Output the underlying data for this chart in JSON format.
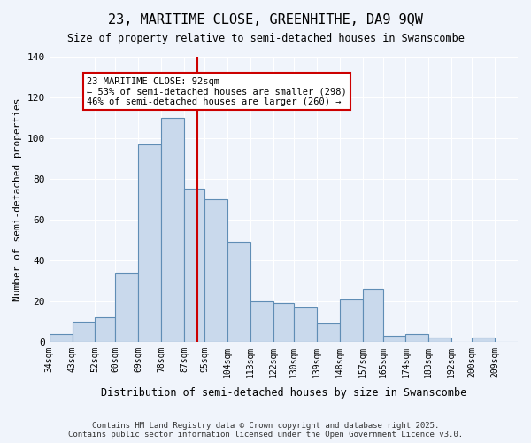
{
  "title": "23, MARITIME CLOSE, GREENHITHE, DA9 9QW",
  "subtitle": "Size of property relative to semi-detached houses in Swanscombe",
  "xlabel": "Distribution of semi-detached houses by size in Swanscombe",
  "ylabel": "Number of semi-detached properties",
  "categories": [
    "34sqm",
    "43sqm",
    "52sqm",
    "60sqm",
    "69sqm",
    "78sqm",
    "87sqm",
    "95sqm",
    "104sqm",
    "113sqm",
    "122sqm",
    "130sqm",
    "139sqm",
    "148sqm",
    "157sqm",
    "165sqm",
    "174sqm",
    "183sqm",
    "192sqm",
    "200sqm",
    "209sqm"
  ],
  "values": [
    4,
    10,
    12,
    34,
    97,
    110,
    75,
    70,
    49,
    20,
    19,
    17,
    9,
    21,
    26,
    3,
    4,
    2,
    0,
    2,
    0
  ],
  "bar_color": "#c9d9ec",
  "bar_edge_color": "#5f8db5",
  "property_line_x": 92,
  "bin_edges": [
    34,
    43,
    52,
    60,
    69,
    78,
    87,
    95,
    104,
    113,
    122,
    130,
    139,
    148,
    157,
    165,
    174,
    183,
    192,
    200,
    209,
    218
  ],
  "annotation_text": "23 MARITIME CLOSE: 92sqm\n← 53% of semi-detached houses are smaller (298)\n46% of semi-detached houses are larger (260) →",
  "annotation_box_color": "#ffffff",
  "annotation_box_edge": "#cc0000",
  "vline_color": "#cc0000",
  "ylim": [
    0,
    140
  ],
  "yticks": [
    0,
    20,
    40,
    60,
    80,
    100,
    120,
    140
  ],
  "footer": "Contains HM Land Registry data © Crown copyright and database right 2025.\nContains public sector information licensed under the Open Government Licence v3.0.",
  "bg_color": "#f0f4fb",
  "grid_color": "#ffffff"
}
